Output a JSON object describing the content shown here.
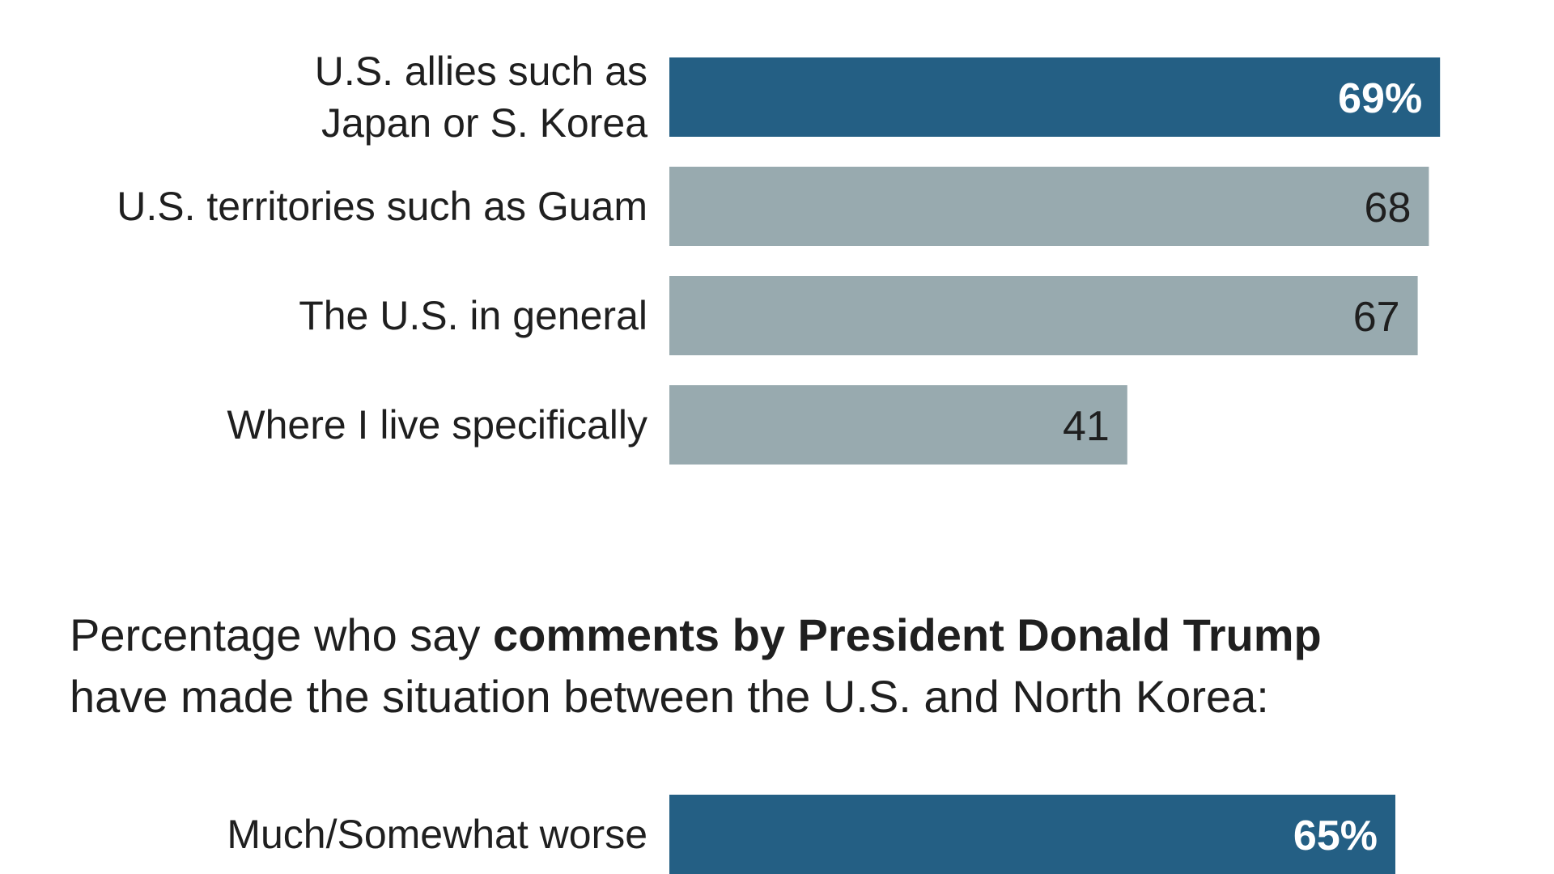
{
  "colors": {
    "highlight": "#245f84",
    "neutral": "#98aaaf",
    "text": "#1f1f1f",
    "inside_label_highlight": "#ffffff",
    "inside_label_neutral": "#1f1f1f"
  },
  "chart_data": [
    {
      "type": "bar",
      "orientation": "horizontal",
      "title": "",
      "xlabel": "",
      "ylabel": "",
      "xlim": [
        0,
        100
      ],
      "grid": false,
      "legend": "none",
      "categories": [
        "U.S. allies such as Japan or S. Korea",
        "U.S. territories such as Guam",
        "The U.S. in general",
        "Where I live specifically"
      ],
      "category_lines": [
        [
          "U.S. allies such as",
          "Japan or S. Korea"
        ],
        [
          "U.S. territories such as Guam"
        ],
        [
          "The U.S. in general"
        ],
        [
          "Where I live specifically"
        ]
      ],
      "values": [
        69,
        68,
        67,
        41
      ],
      "value_labels": [
        "69%",
        "68",
        "67",
        "41"
      ],
      "highlight": [
        true,
        false,
        false,
        false
      ]
    },
    {
      "type": "bar",
      "orientation": "horizontal",
      "title_parts": [
        {
          "text": "Percentage who say ",
          "bold": false
        },
        {
          "text": "comments by President Donald Trump",
          "bold": true
        }
      ],
      "title_line2": "have made the situation between the U.S. and North Korea:",
      "xlabel": "",
      "ylabel": "",
      "xlim": [
        0,
        100
      ],
      "grid": false,
      "legend": "none",
      "categories": [
        "Much/Somewhat worse"
      ],
      "category_lines": [
        [
          "Much/Somewhat worse"
        ]
      ],
      "values": [
        65
      ],
      "value_labels": [
        "65%"
      ],
      "highlight": [
        true
      ]
    }
  ]
}
